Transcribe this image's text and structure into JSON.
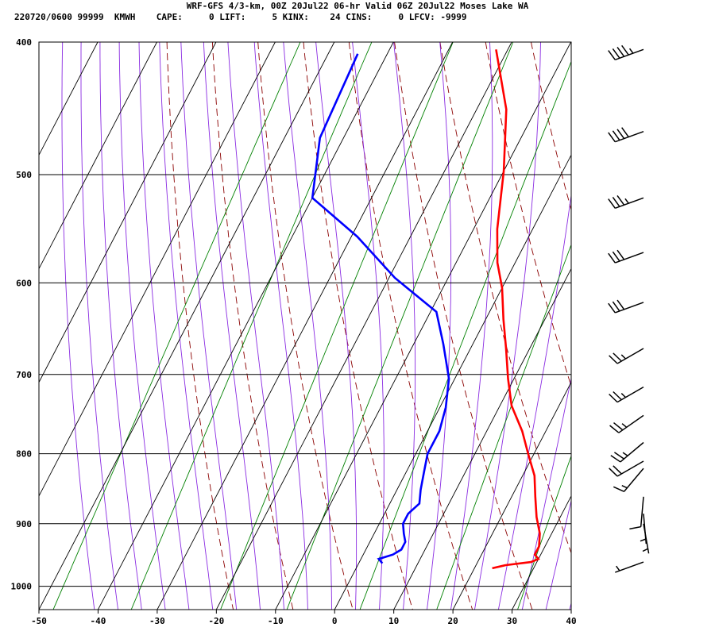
{
  "header": {
    "title": "WRF-GFS 4/3-km, 00Z 20Jul22 06-hr Valid 06Z 20Jul22 Moses Lake WA",
    "stats": "220720/0600 99999  KMWH    CAPE:     0 LIFT:     5 KINX:    24 CINS:     0 LFCV: -9999"
  },
  "chart_data": {
    "type": "line",
    "title": "WRF-GFS 4/3-km, 00Z 20Jul22 06-hr Valid 06Z 20Jul22 Moses Lake WA",
    "xlabel": "",
    "ylabel": "",
    "x_range": [
      -50,
      40
    ],
    "p_range": [
      400,
      1040
    ],
    "x_ticks": [
      "-50",
      "-40",
      "-30",
      "-20",
      "-10",
      "0",
      "10",
      "20",
      "30",
      "40"
    ],
    "y_ticks": [
      "400",
      "500",
      "600",
      "700",
      "800",
      "900",
      "1000"
    ],
    "grid": true,
    "colors": {
      "temperature": "#ff0000",
      "dewpoint": "#0000ff",
      "dry_adiabats": "#8b0000",
      "moist_adiabats": "#8a2be2",
      "mixing_ratio": "#008000",
      "grid": "#000000"
    },
    "series": [
      {
        "key": "temperature",
        "points": [
          [
            -22,
            405
          ],
          [
            -15,
            448
          ],
          [
            -10,
            497
          ],
          [
            -6,
            548
          ],
          [
            -3,
            580
          ],
          [
            0,
            605
          ],
          [
            3,
            638
          ],
          [
            6,
            670
          ],
          [
            9,
            705
          ],
          [
            12,
            738
          ],
          [
            16,
            770
          ],
          [
            19,
            800
          ],
          [
            22,
            830
          ],
          [
            24,
            860
          ],
          [
            26,
            890
          ],
          [
            28,
            915
          ],
          [
            29,
            935
          ],
          [
            29,
            948
          ],
          [
            30,
            955
          ],
          [
            29,
            960
          ],
          [
            25,
            965
          ],
          [
            23,
            970
          ]
        ]
      },
      {
        "key": "dewpoint",
        "points": [
          [
            -45,
            408
          ],
          [
            -44,
            470
          ],
          [
            -40,
            520
          ],
          [
            -29,
            555
          ],
          [
            -19,
            595
          ],
          [
            -9,
            630
          ],
          [
            -5,
            665
          ],
          [
            -1,
            705
          ],
          [
            1,
            740
          ],
          [
            2,
            770
          ],
          [
            2,
            800
          ],
          [
            3,
            825
          ],
          [
            4,
            850
          ],
          [
            5,
            870
          ],
          [
            4,
            885
          ],
          [
            4,
            900
          ],
          [
            5,
            915
          ],
          [
            6,
            928
          ],
          [
            6,
            940
          ],
          [
            5,
            948
          ],
          [
            3,
            955
          ],
          [
            4,
            962
          ]
        ]
      }
    ],
    "wind_barbs": [
      {
        "p": 405,
        "dir": 250,
        "speed_kt": 45
      },
      {
        "p": 465,
        "dir": 250,
        "speed_kt": 40
      },
      {
        "p": 520,
        "dir": 250,
        "speed_kt": 35
      },
      {
        "p": 570,
        "dir": 250,
        "speed_kt": 30
      },
      {
        "p": 620,
        "dir": 250,
        "speed_kt": 30
      },
      {
        "p": 670,
        "dir": 240,
        "speed_kt": 25
      },
      {
        "p": 715,
        "dir": 240,
        "speed_kt": 25
      },
      {
        "p": 750,
        "dir": 235,
        "speed_kt": 25
      },
      {
        "p": 785,
        "dir": 230,
        "speed_kt": 25
      },
      {
        "p": 810,
        "dir": 240,
        "speed_kt": 20
      },
      {
        "p": 820,
        "dir": 220,
        "speed_kt": 15
      },
      {
        "p": 860,
        "dir": 185,
        "speed_kt": 10
      },
      {
        "p": 885,
        "dir": 175,
        "speed_kt": 5
      },
      {
        "p": 900,
        "dir": 170,
        "speed_kt": 5
      },
      {
        "p": 960,
        "dir": 250,
        "speed_kt": 5
      }
    ]
  }
}
